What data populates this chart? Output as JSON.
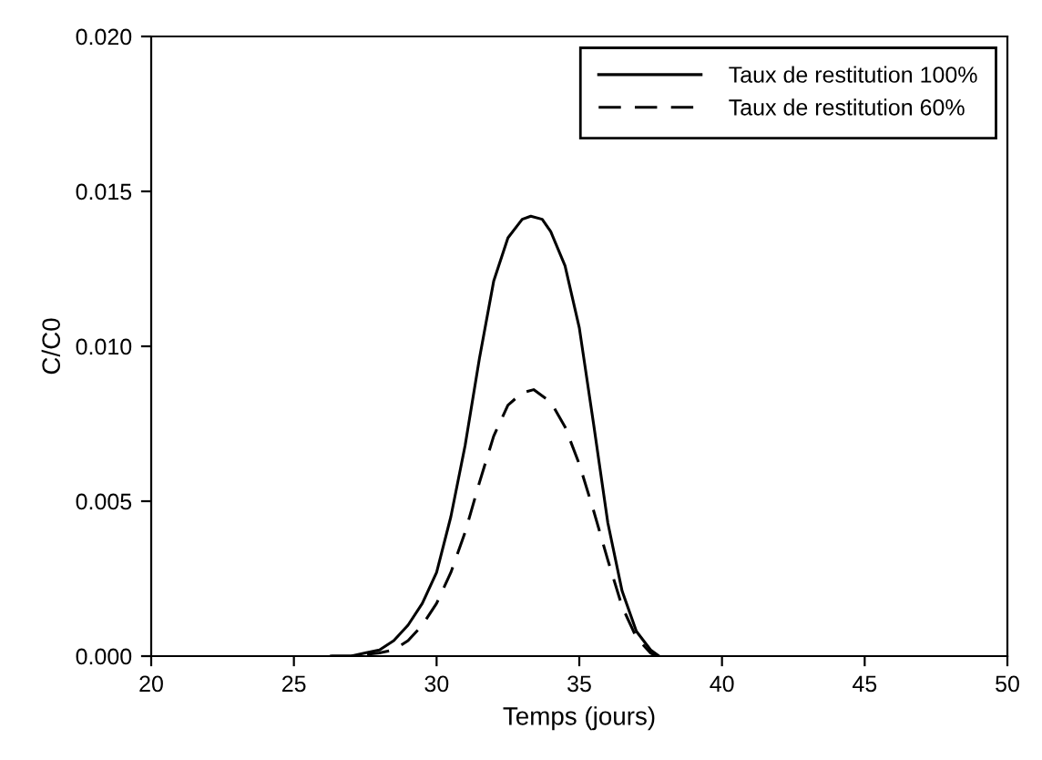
{
  "chart_data": {
    "type": "line",
    "xlabel": "Temps (jours)",
    "ylabel": "C/C0",
    "xlim": [
      20,
      50
    ],
    "ylim": [
      0,
      0.02
    ],
    "xticks": [
      20,
      25,
      30,
      35,
      40,
      45,
      50
    ],
    "yticks": [
      {
        "value": 0,
        "label": "0.000"
      },
      {
        "value": 0.005,
        "label": "0.005"
      },
      {
        "value": 0.01,
        "label": "0.010"
      },
      {
        "value": 0.015,
        "label": "0.015"
      },
      {
        "value": 0.02,
        "label": "0.020"
      }
    ],
    "grid": false,
    "legend": "top right",
    "marker": "none",
    "series": [
      {
        "name": "Taux de restitution 100%",
        "color": "#000000",
        "line_style": "solid",
        "x": [
          26.3,
          27,
          27.5,
          28,
          28.5,
          29,
          29.5,
          30,
          30.5,
          31,
          31.5,
          32,
          32.5,
          33,
          33.3,
          33.7,
          34,
          34.5,
          35,
          35.5,
          36,
          36.5,
          37,
          37.5,
          37.8
        ],
        "values": [
          0,
          0,
          0.0001,
          0.0002,
          0.0005,
          0.001,
          0.0017,
          0.0027,
          0.0045,
          0.0068,
          0.0096,
          0.0121,
          0.0135,
          0.0141,
          0.0142,
          0.0141,
          0.0137,
          0.0126,
          0.0106,
          0.0075,
          0.0043,
          0.0021,
          0.0008,
          0.0002,
          0
        ]
      },
      {
        "name": "Taux de restitution 60%",
        "color": "#000000",
        "line_style": "dashed",
        "x": [
          26.3,
          27,
          28,
          28.5,
          29,
          29.5,
          30,
          30.5,
          31,
          31.5,
          32,
          32.5,
          33,
          33.4,
          34,
          34.5,
          35,
          35.5,
          36,
          36.5,
          37,
          37.5,
          37.7
        ],
        "values": [
          0,
          0,
          0.0001,
          0.0002,
          0.0005,
          0.001,
          0.0017,
          0.0027,
          0.004,
          0.0056,
          0.0071,
          0.0081,
          0.0085,
          0.0086,
          0.0082,
          0.0074,
          0.0062,
          0.0047,
          0.0031,
          0.0016,
          0.0006,
          0.0001,
          0
        ]
      }
    ]
  }
}
